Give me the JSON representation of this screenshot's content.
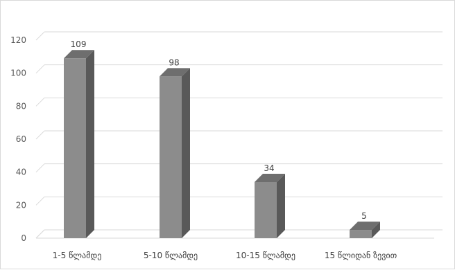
{
  "chart_data": {
    "type": "bar",
    "style": "3d-column",
    "categories": [
      "1-5 წლამდე",
      "5-10 წლამდე",
      "10-15 წლამდე",
      "15 წლიდან ზევით"
    ],
    "values": [
      109,
      98,
      34,
      5
    ],
    "data_labels": [
      "109",
      "98",
      "34",
      "5"
    ],
    "y_ticks": [
      "0",
      "20",
      "40",
      "60",
      "80",
      "100",
      "120"
    ],
    "ylim": [
      0,
      120
    ],
    "grid": true,
    "legend": "none",
    "colors": {
      "bar_front": "#8c8c8c",
      "bar_side": "#595959",
      "bar_top": "#6e6e6e",
      "gridline": "#d9d9d9",
      "text": "#404040"
    }
  }
}
